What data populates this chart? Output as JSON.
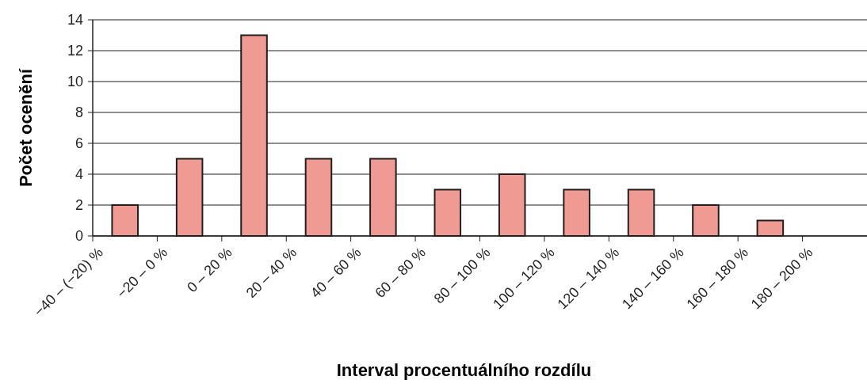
{
  "chart_data": {
    "type": "bar",
    "xlabel": "Interval procentuálního rozdílu",
    "ylabel": "Počet ocenění",
    "categories": [
      "−40 – (−20) %",
      "−20 – 0 %",
      "0 – 20 %",
      "20 – 40 %",
      "40 – 60 %",
      "60 – 80 %",
      "80 – 100 %",
      "100 – 120 %",
      "120 – 140 %",
      "140 – 160 %",
      "160 – 180 %",
      "180 – 200 %"
    ],
    "values": [
      2,
      5,
      13,
      5,
      5,
      3,
      4,
      3,
      3,
      2,
      1,
      0
    ],
    "color": "#f09a94",
    "ylim": [
      0,
      14
    ],
    "yticks": [
      0,
      2,
      4,
      6,
      8,
      10,
      12,
      14
    ],
    "grid": "y"
  }
}
